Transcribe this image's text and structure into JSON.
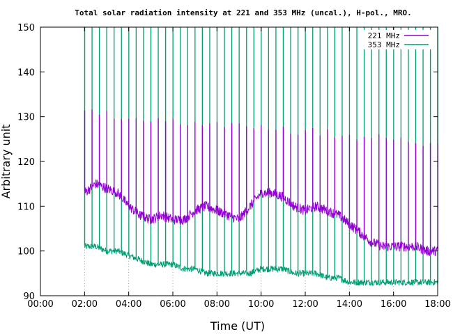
{
  "chart_data": {
    "type": "line",
    "title": "Total solar radiation intensity at 221 and 353 MHz (uncal.), H-pol., MRO.",
    "xlabel": "Time (UT)",
    "ylabel": "Arbitrary unit",
    "xlim": [
      "00:00",
      "18:00"
    ],
    "ylim": [
      90,
      150
    ],
    "xticks": [
      "00:00",
      "02:00",
      "04:00",
      "06:00",
      "08:00",
      "10:00",
      "12:00",
      "14:00",
      "16:00",
      "18:00"
    ],
    "yticks": [
      "90",
      "100",
      "110",
      "120",
      "130",
      "140",
      "150"
    ],
    "grid": "vertical-dotted",
    "legend_position": "top-right",
    "calibration_spike_interval_minutes": 20,
    "series": [
      {
        "name": "221 MHz",
        "color": "#9400d3",
        "baseline_x": [
          "02:00",
          "02:30",
          "03:00",
          "03:30",
          "04:00",
          "04:30",
          "05:00",
          "05:30",
          "06:00",
          "06:30",
          "07:00",
          "07:30",
          "08:00",
          "08:30",
          "09:00",
          "09:30",
          "10:00",
          "10:30",
          "11:00",
          "11:30",
          "12:00",
          "12:30",
          "13:00",
          "13:30",
          "14:00",
          "14:30",
          "15:00",
          "15:30",
          "16:00",
          "16:30",
          "17:00",
          "17:30",
          "18:00"
        ],
        "baseline_y": [
          113,
          115,
          114,
          113,
          110,
          108,
          107,
          108,
          107,
          107,
          109,
          110,
          109,
          108,
          107,
          110,
          113,
          113,
          112,
          110,
          109,
          110,
          109,
          108,
          106,
          104,
          102,
          101,
          101,
          101,
          101,
          100,
          100
        ],
        "spike_peak_start": 131,
        "spike_peak_end": 124
      },
      {
        "name": "353 MHz",
        "color": "#009e73",
        "baseline_x": [
          "02:00",
          "02:30",
          "03:00",
          "03:30",
          "04:00",
          "04:30",
          "05:00",
          "05:30",
          "06:00",
          "06:30",
          "07:00",
          "07:30",
          "08:00",
          "08:30",
          "09:00",
          "09:30",
          "10:00",
          "10:30",
          "11:00",
          "11:30",
          "12:00",
          "12:30",
          "13:00",
          "13:30",
          "14:00",
          "14:30",
          "15:00",
          "15:30",
          "16:00",
          "16:30",
          "17:00",
          "17:30",
          "18:00"
        ],
        "baseline_y": [
          101,
          101,
          100,
          100,
          99,
          98,
          97,
          97,
          97,
          96,
          96,
          95,
          95,
          95,
          95,
          95,
          96,
          96,
          96,
          95,
          95,
          95,
          94,
          94,
          93,
          93,
          93,
          93,
          93,
          93,
          93,
          93,
          93
        ],
        "spike_peak": 150
      }
    ]
  }
}
